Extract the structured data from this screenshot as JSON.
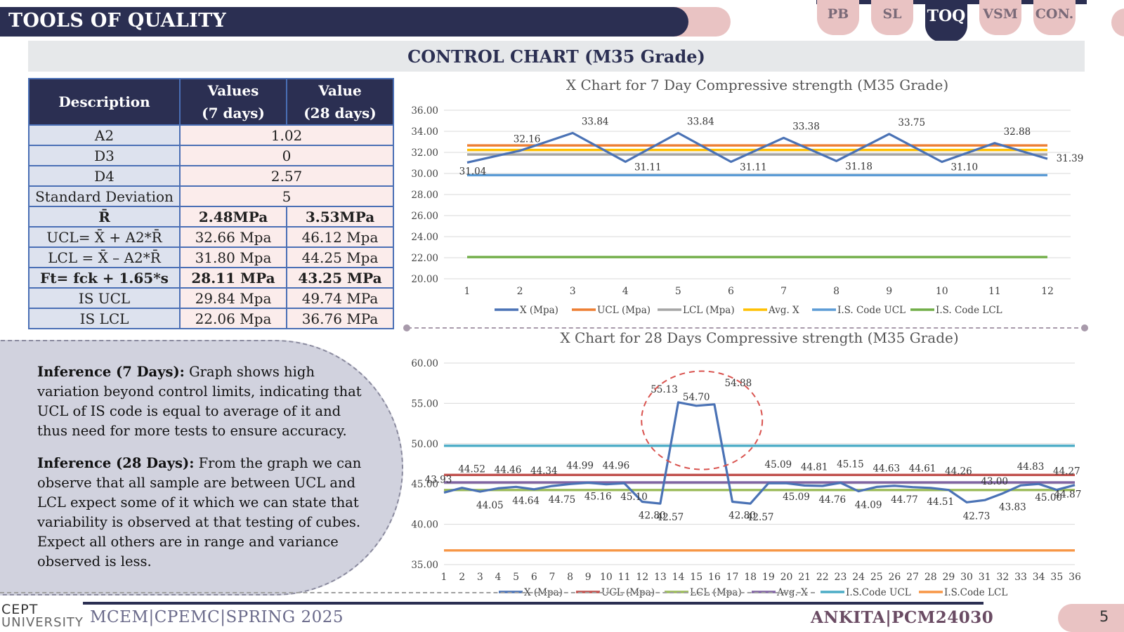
{
  "header": {
    "title": "TOOLS OF QUALITY"
  },
  "nav": {
    "tabs": [
      {
        "label": "PB",
        "active": false
      },
      {
        "label": "SL",
        "active": false
      },
      {
        "label": "TOQ",
        "active": true
      },
      {
        "label": "VSM",
        "active": false
      },
      {
        "label": "CON.",
        "active": false
      }
    ]
  },
  "section": {
    "title": "CONTROL CHART (M35 Grade)"
  },
  "table": {
    "headers": [
      "Description",
      "Values\n(7 days)",
      "Value\n(28 days)"
    ],
    "rows": [
      {
        "cells": [
          "A2",
          "1.02"
        ],
        "bold": false
      },
      {
        "cells": [
          "D3",
          "0"
        ],
        "bold": false
      },
      {
        "cells": [
          "D4",
          "2.57"
        ],
        "bold": false
      },
      {
        "cells": [
          "Standard Deviation",
          "5"
        ],
        "bold": false
      },
      {
        "cells": [
          "R̄",
          "2.48MPa",
          "3.53MPa"
        ],
        "bold": true
      },
      {
        "cells": [
          "UCL= X̄ + A2*R̄",
          "32.66  Mpa",
          "46.12  Mpa"
        ],
        "bold": false
      },
      {
        "cells": [
          "LCL = X̄ – A2*R̄",
          "31.80  Mpa",
          "44.25  Mpa"
        ],
        "bold": false
      },
      {
        "cells": [
          "Ft= fck + 1.65*s",
          "28.11 MPa",
          "43.25  MPa"
        ],
        "bold": true
      },
      {
        "cells": [
          "IS UCL",
          "29.84 Mpa",
          "49.74 MPa"
        ],
        "bold": false
      },
      {
        "cells": [
          "IS LCL",
          "22.06 Mpa",
          "36.76 MPa"
        ],
        "bold": false
      }
    ]
  },
  "inference": {
    "seven_label": "Inference (7 Days):",
    "seven_text": " Graph shows high variation beyond control limits, indicating that UCL of IS code is equal to average of it and thus need for more tests to ensure accuracy.",
    "twentyeight_label": "Inference (28 Days):",
    "twentyeight_text": " From the graph we can observe that all sample are between UCL and LCL expect some of it which we can state that variability is observed at that testing of cubes. Expect all others are in range and variance observed is less."
  },
  "footer": {
    "logo_top": "CEPT",
    "logo_bottom": "UNIVERSITY",
    "left": "MCEM|CPEMC|SPRING 2025",
    "right": "ANKITA|PCM24030",
    "page": "5"
  },
  "chart_data": [
    {
      "type": "line",
      "title": "X Chart for 7 Day Compressive strength (M35 Grade)",
      "x": [
        1,
        2,
        3,
        4,
        5,
        6,
        7,
        8,
        9,
        10,
        11,
        12
      ],
      "ylim": [
        20,
        36
      ],
      "yticks": [
        "20.00",
        "22.00",
        "24.00",
        "26.00",
        "28.00",
        "30.00",
        "32.00",
        "34.00",
        "36.00"
      ],
      "legend_position": "bottom",
      "grid": true,
      "data_labels": [
        "31.04",
        "32.16",
        "33.84",
        "31.11",
        "33.84",
        "31.11",
        "33.38",
        "31.18",
        "33.75",
        "31.10",
        "32.88",
        "31.39"
      ],
      "series": [
        {
          "name": "X (Mpa)",
          "color": "#4a72b5",
          "values": [
            31.04,
            32.16,
            33.84,
            31.11,
            33.84,
            31.11,
            33.38,
            31.18,
            33.75,
            31.1,
            32.88,
            31.39
          ]
        },
        {
          "name": "UCL (Mpa)",
          "color": "#ed7d31",
          "values": [
            32.66,
            32.66,
            32.66,
            32.66,
            32.66,
            32.66,
            32.66,
            32.66,
            32.66,
            32.66,
            32.66,
            32.66
          ]
        },
        {
          "name": "LCL (Mpa)",
          "color": "#a5a5a5",
          "values": [
            31.8,
            31.8,
            31.8,
            31.8,
            31.8,
            31.8,
            31.8,
            31.8,
            31.8,
            31.8,
            31.8,
            31.8
          ]
        },
        {
          "name": "Avg. X",
          "color": "#ffc000",
          "values": [
            32.23,
            32.23,
            32.23,
            32.23,
            32.23,
            32.23,
            32.23,
            32.23,
            32.23,
            32.23,
            32.23,
            32.23
          ]
        },
        {
          "name": "I.S. Code UCL",
          "color": "#5b9bd5",
          "values": [
            29.84,
            29.84,
            29.84,
            29.84,
            29.84,
            29.84,
            29.84,
            29.84,
            29.84,
            29.84,
            29.84,
            29.84
          ]
        },
        {
          "name": "I.S. Code LCL",
          "color": "#70ad47",
          "values": [
            22.06,
            22.06,
            22.06,
            22.06,
            22.06,
            22.06,
            22.06,
            22.06,
            22.06,
            22.06,
            22.06,
            22.06
          ]
        }
      ]
    },
    {
      "type": "line",
      "title": "X Chart for 28 Days Compressive strength (M35 Grade)",
      "x": [
        1,
        2,
        3,
        4,
        5,
        6,
        7,
        8,
        9,
        10,
        11,
        12,
        13,
        14,
        15,
        16,
        17,
        18,
        19,
        20,
        21,
        22,
        23,
        24,
        25,
        26,
        27,
        28,
        29,
        30,
        31,
        32,
        33,
        34,
        35,
        36
      ],
      "ylim": [
        35,
        60
      ],
      "yticks": [
        "35.00",
        "40.00",
        "45.00",
        "50.00",
        "55.00",
        "60.00"
      ],
      "legend_position": "bottom",
      "grid": true,
      "data_labels": [
        "43.93",
        "44.52",
        "44.05",
        "44.46",
        "44.64",
        "44.34",
        "44.75",
        "44.99",
        "45.16",
        "44.96",
        "45.10",
        "42.80",
        "42.57",
        "55.13",
        "54.70",
        "54.88",
        "42.80",
        "42.57",
        "45.09",
        "45.09",
        "44.81",
        "44.76",
        "45.15",
        "44.09",
        "44.63",
        "44.77",
        "44.61",
        "44.51",
        "44.26",
        "42.73",
        "43.00",
        "43.83",
        "44.83",
        "45.00",
        "44.27",
        "44.87"
      ],
      "series": [
        {
          "name": "X (Mpa)",
          "color": "#4a72b5",
          "values": [
            43.93,
            44.52,
            44.05,
            44.46,
            44.64,
            44.34,
            44.75,
            44.99,
            45.16,
            44.96,
            45.1,
            42.8,
            42.57,
            55.13,
            54.7,
            54.88,
            42.8,
            42.57,
            45.09,
            45.09,
            44.81,
            44.76,
            45.15,
            44.09,
            44.63,
            44.77,
            44.61,
            44.51,
            44.26,
            42.73,
            43.0,
            43.83,
            44.83,
            45.0,
            44.27,
            44.87
          ]
        },
        {
          "name": "UCL (Mpa)",
          "color": "#c0504d",
          "values": [
            46.12,
            46.12,
            46.12,
            46.12,
            46.12,
            46.12,
            46.12,
            46.12,
            46.12,
            46.12,
            46.12,
            46.12,
            46.12,
            46.12,
            46.12,
            46.12,
            46.12,
            46.12,
            46.12,
            46.12,
            46.12,
            46.12,
            46.12,
            46.12,
            46.12,
            46.12,
            46.12,
            46.12,
            46.12,
            46.12,
            46.12,
            46.12,
            46.12,
            46.12,
            46.12,
            46.12
          ]
        },
        {
          "name": "LCL (Mpa)",
          "color": "#9bbb59",
          "values": [
            44.25,
            44.25,
            44.25,
            44.25,
            44.25,
            44.25,
            44.25,
            44.25,
            44.25,
            44.25,
            44.25,
            44.25,
            44.25,
            44.25,
            44.25,
            44.25,
            44.25,
            44.25,
            44.25,
            44.25,
            44.25,
            44.25,
            44.25,
            44.25,
            44.25,
            44.25,
            44.25,
            44.25,
            44.25,
            44.25,
            44.25,
            44.25,
            44.25,
            44.25,
            44.25,
            44.25
          ]
        },
        {
          "name": "Avg. X",
          "color": "#8064a2",
          "values": [
            45.19,
            45.19,
            45.19,
            45.19,
            45.19,
            45.19,
            45.19,
            45.19,
            45.19,
            45.19,
            45.19,
            45.19,
            45.19,
            45.19,
            45.19,
            45.19,
            45.19,
            45.19,
            45.19,
            45.19,
            45.19,
            45.19,
            45.19,
            45.19,
            45.19,
            45.19,
            45.19,
            45.19,
            45.19,
            45.19,
            45.19,
            45.19,
            45.19,
            45.19,
            45.19,
            45.19
          ]
        },
        {
          "name": "I.S.Code UCL",
          "color": "#4bacc6",
          "values": [
            49.74,
            49.74,
            49.74,
            49.74,
            49.74,
            49.74,
            49.74,
            49.74,
            49.74,
            49.74,
            49.74,
            49.74,
            49.74,
            49.74,
            49.74,
            49.74,
            49.74,
            49.74,
            49.74,
            49.74,
            49.74,
            49.74,
            49.74,
            49.74,
            49.74,
            49.74,
            49.74,
            49.74,
            49.74,
            49.74,
            49.74,
            49.74,
            49.74,
            49.74,
            49.74,
            49.74
          ]
        },
        {
          "name": "I.S.Code LCL",
          "color": "#f79646",
          "values": [
            36.76,
            36.76,
            36.76,
            36.76,
            36.76,
            36.76,
            36.76,
            36.76,
            36.76,
            36.76,
            36.76,
            36.76,
            36.76,
            36.76,
            36.76,
            36.76,
            36.76,
            36.76,
            36.76,
            36.76,
            36.76,
            36.76,
            36.76,
            36.76,
            36.76,
            36.76,
            36.76,
            36.76,
            36.76,
            36.76,
            36.76,
            36.76,
            36.76,
            36.76,
            36.76,
            36.76
          ]
        }
      ]
    }
  ]
}
